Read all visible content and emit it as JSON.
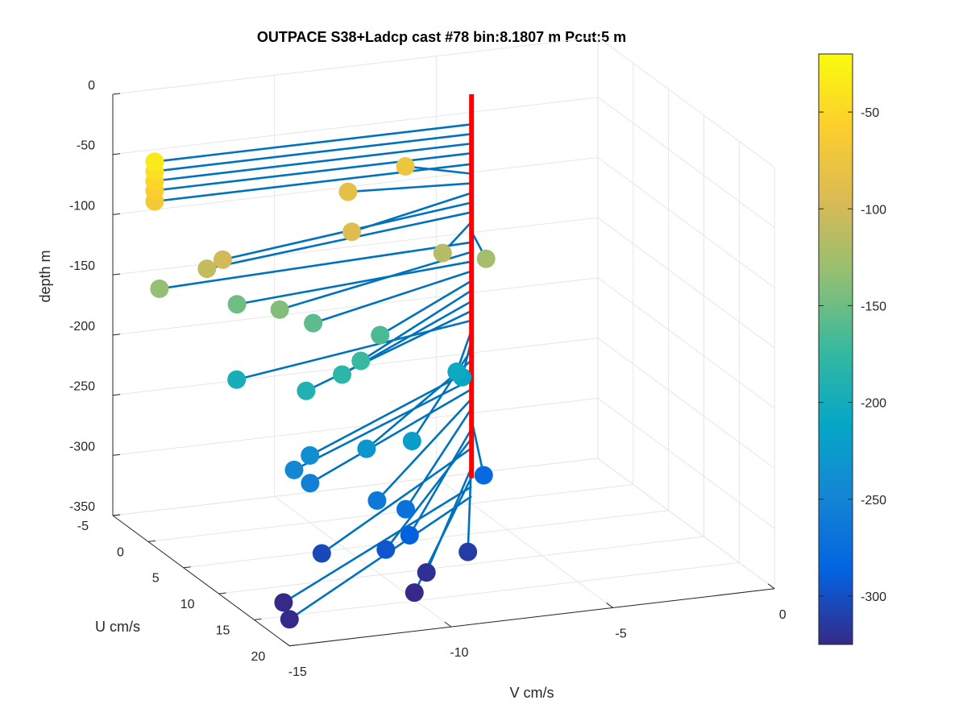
{
  "chart_data": {
    "type": "scatter",
    "projection": "3d",
    "title": "OUTPACE S38+Ladcp cast #78 bin:8.1807 m  Pcut:5 m",
    "zlabel": "depth m",
    "ulabel": "U cm/s",
    "vlabel": "V cm/s",
    "z_ticks": [
      "0",
      "-50",
      "-100",
      "-150",
      "-200",
      "-250",
      "-300",
      "-350"
    ],
    "u_ticks": [
      "-5",
      "0",
      "5",
      "10",
      "15",
      "20"
    ],
    "v_ticks": [
      "-15",
      "-10",
      "-5",
      "0"
    ],
    "zlim": [
      -350,
      0
    ],
    "ulim": [
      -5,
      20
    ],
    "vlim": [
      -15,
      0
    ],
    "grid": true,
    "colorbar": {
      "ticks": [
        "-50",
        "-100",
        "-150",
        "-200",
        "-250",
        "-300"
      ],
      "range": [
        -325,
        -20
      ],
      "colormap": "parula"
    },
    "origin_line_color": "#ff0000",
    "line_color": "#0072bd",
    "origin": {
      "u": 0,
      "v": -5
    },
    "points": [
      {
        "depth": -35,
        "u": 0,
        "v": -14.8
      },
      {
        "depth": -43,
        "u": 0,
        "v": -14.8
      },
      {
        "depth": -51,
        "u": 0,
        "v": -14.8
      },
      {
        "depth": -59,
        "u": 0,
        "v": -14.8
      },
      {
        "depth": -68,
        "u": 0,
        "v": -14.8
      },
      {
        "depth": -76,
        "u": -2.5,
        "v": -6.5
      },
      {
        "depth": -84,
        "u": -1.0,
        "v": -8.6
      },
      {
        "depth": -92,
        "u": 4.1,
        "v": -9.6
      },
      {
        "depth": -100,
        "u": 4.6,
        "v": -13.7
      },
      {
        "depth": -108,
        "u": 4.2,
        "v": -14.1
      },
      {
        "depth": -116,
        "u": 4.6,
        "v": -6.9
      },
      {
        "depth": -124,
        "u": 4.8,
        "v": -5.6
      },
      {
        "depth": -133,
        "u": 1.6,
        "v": -15.0
      },
      {
        "depth": -141,
        "u": 5.8,
        "v": -12.2
      },
      {
        "depth": -149,
        "u": 2.5,
        "v": -12.8
      },
      {
        "depth": -157,
        "u": 5.5,
        "v": -11.1
      },
      {
        "depth": -165,
        "u": 7.2,
        "v": -9.4
      },
      {
        "depth": -173,
        "u": 9.5,
        "v": -10.5
      },
      {
        "depth": -182,
        "u": 9.6,
        "v": -11.1
      },
      {
        "depth": -190,
        "u": 10.0,
        "v": -12.3
      },
      {
        "depth": -198,
        "u": 5.2,
        "v": -13.4
      },
      {
        "depth": -206,
        "u": 6.6,
        "v": -6.9
      },
      {
        "depth": -214,
        "u": 6.0,
        "v": -6.6
      },
      {
        "depth": -222,
        "u": 14.0,
        "v": -9.9
      },
      {
        "depth": -231,
        "u": 12.6,
        "v": -11.0
      },
      {
        "depth": -239,
        "u": 11.0,
        "v": -12.4
      },
      {
        "depth": -247,
        "u": 11.5,
        "v": -13.0
      },
      {
        "depth": -255,
        "u": 12.4,
        "v": -12.7
      },
      {
        "depth": -263,
        "u": 15.0,
        "v": -11.2
      },
      {
        "depth": -271,
        "u": 15.4,
        "v": -10.4
      },
      {
        "depth": -280,
        "u": 9.5,
        "v": -6.7
      },
      {
        "depth": -288,
        "u": 16.4,
        "v": -10.5
      },
      {
        "depth": -296,
        "u": 16.7,
        "v": -11.3
      },
      {
        "depth": -304,
        "u": 14.5,
        "v": -12.8
      },
      {
        "depth": -312,
        "u": 15.5,
        "v": -8.5
      },
      {
        "depth": -320,
        "u": 16.5,
        "v": -10.0
      },
      {
        "depth": -328,
        "u": 18.0,
        "v": -10.7
      },
      {
        "depth": -336,
        "u": 15.5,
        "v": -14.2
      },
      {
        "depth": -344,
        "u": 16.8,
        "v": -14.3
      }
    ]
  }
}
